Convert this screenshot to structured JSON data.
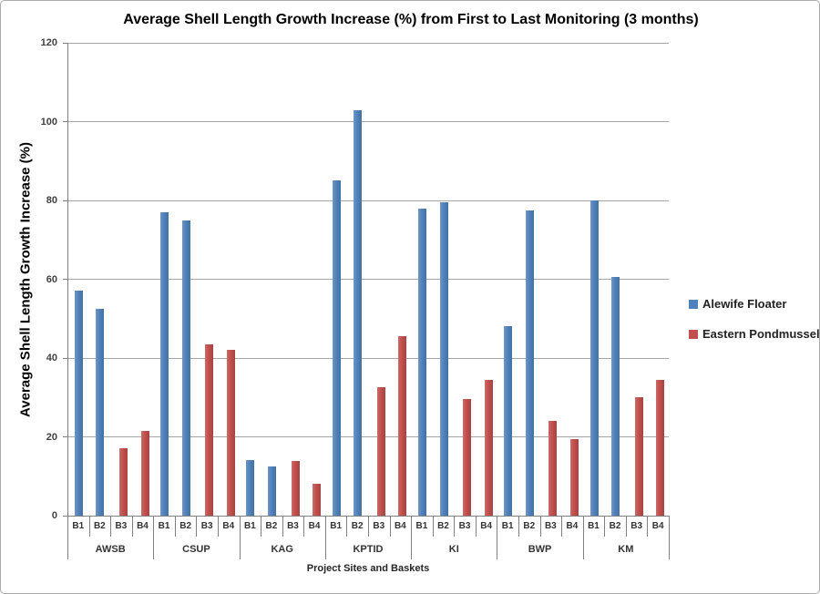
{
  "chart_data": {
    "type": "bar",
    "title": "Average Shell Length Growth Increase (%) from First to Last Monitoring (3 months)",
    "xlabel": "Project Sites and Baskets",
    "ylabel": "Average Shell Length Growth Increase (%)",
    "ylim": [
      0,
      120
    ],
    "ytick_step": 20,
    "grid": true,
    "legend_position": "right",
    "series": [
      {
        "name": "Alewife Floater",
        "color": "#4F81BD"
      },
      {
        "name": "Eastern Pondmussel",
        "color": "#C0504D"
      }
    ],
    "groups": [
      {
        "site": "AWSB",
        "bars": [
          {
            "basket": "B1",
            "series": "Alewife Floater",
            "value": 57
          },
          {
            "basket": "B2",
            "series": "Alewife Floater",
            "value": 52.5
          },
          {
            "basket": "B3",
            "series": "Eastern Pondmussel",
            "value": 17
          },
          {
            "basket": "B4",
            "series": "Eastern Pondmussel",
            "value": 21.5
          }
        ]
      },
      {
        "site": "CSUP",
        "bars": [
          {
            "basket": "B1",
            "series": "Alewife Floater",
            "value": 77
          },
          {
            "basket": "B2",
            "series": "Alewife Floater",
            "value": 75
          },
          {
            "basket": "B3",
            "series": "Eastern Pondmussel",
            "value": 43.5
          },
          {
            "basket": "B4",
            "series": "Eastern Pondmussel",
            "value": 42
          }
        ]
      },
      {
        "site": "KAG",
        "bars": [
          {
            "basket": "B1",
            "series": "Alewife Floater",
            "value": 14
          },
          {
            "basket": "B2",
            "series": "Alewife Floater",
            "value": 12.5
          },
          {
            "basket": "B3",
            "series": "Eastern Pondmussel",
            "value": 13.8
          },
          {
            "basket": "B4",
            "series": "Eastern Pondmussel",
            "value": 8
          }
        ]
      },
      {
        "site": "KPTID",
        "bars": [
          {
            "basket": "B1",
            "series": "Alewife Floater",
            "value": 85
          },
          {
            "basket": "B2",
            "series": "Alewife Floater",
            "value": 103
          },
          {
            "basket": "B3",
            "series": "Eastern Pondmussel",
            "value": 32.5
          },
          {
            "basket": "B4",
            "series": "Eastern Pondmussel",
            "value": 45.5
          }
        ]
      },
      {
        "site": "KI",
        "bars": [
          {
            "basket": "B1",
            "series": "Alewife Floater",
            "value": 78
          },
          {
            "basket": "B2",
            "series": "Alewife Floater",
            "value": 79.5
          },
          {
            "basket": "B3",
            "series": "Eastern Pondmussel",
            "value": 29.5
          },
          {
            "basket": "B4",
            "series": "Eastern Pondmussel",
            "value": 34.5
          }
        ]
      },
      {
        "site": "BWP",
        "bars": [
          {
            "basket": "B1",
            "series": "Alewife Floater",
            "value": 48
          },
          {
            "basket": "B2",
            "series": "Alewife Floater",
            "value": 77.5
          },
          {
            "basket": "B3",
            "series": "Eastern Pondmussel",
            "value": 24
          },
          {
            "basket": "B4",
            "series": "Eastern Pondmussel",
            "value": 19.5
          }
        ]
      },
      {
        "site": "KM",
        "bars": [
          {
            "basket": "B1",
            "series": "Alewife Floater",
            "value": 80
          },
          {
            "basket": "B2",
            "series": "Alewife Floater",
            "value": 60.5
          },
          {
            "basket": "B3",
            "series": "Eastern Pondmussel",
            "value": 30
          },
          {
            "basket": "B4",
            "series": "Eastern Pondmussel",
            "value": 34.5
          }
        ]
      }
    ],
    "colors": {
      "gridline": "#A6A6A6",
      "axis_line": "#808080",
      "tick_label": "#3F3F3F"
    }
  }
}
